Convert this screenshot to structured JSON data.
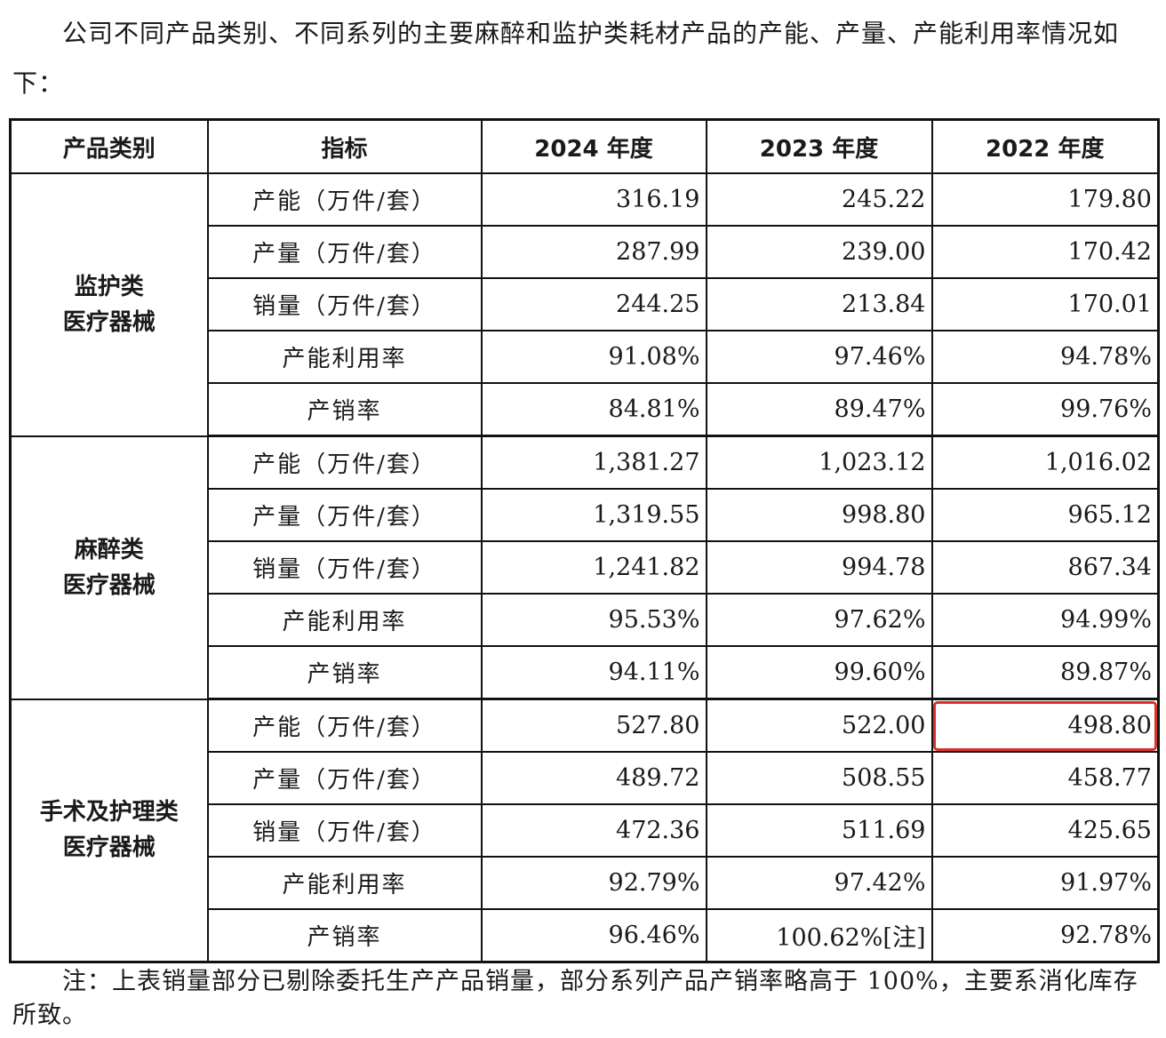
{
  "intro": "公司不同产品类别、不同系列的主要麻醉和监护类耗材产品的产能、产量、产能利用率情况如下：",
  "table": {
    "headers": [
      "产品类别",
      "指标",
      "2024 年度",
      "2023 年度",
      "2022 年度"
    ],
    "groups": [
      {
        "category_line1": "监护类",
        "category_line2": "医疗器械",
        "rows": [
          {
            "metric": "产能（万件/套）",
            "y2024": "316.19",
            "y2023": "245.22",
            "y2022": "179.80"
          },
          {
            "metric": "产量（万件/套）",
            "y2024": "287.99",
            "y2023": "239.00",
            "y2022": "170.42"
          },
          {
            "metric": "销量（万件/套）",
            "y2024": "244.25",
            "y2023": "213.84",
            "y2022": "170.01"
          },
          {
            "metric": "产能利用率",
            "y2024": "91.08%",
            "y2023": "97.46%",
            "y2022": "94.78%"
          },
          {
            "metric": "产销率",
            "y2024": "84.81%",
            "y2023": "89.47%",
            "y2022": "99.76%"
          }
        ]
      },
      {
        "category_line1": "麻醉类",
        "category_line2": "医疗器械",
        "rows": [
          {
            "metric": "产能（万件/套）",
            "y2024": "1,381.27",
            "y2023": "1,023.12",
            "y2022": "1,016.02"
          },
          {
            "metric": "产量（万件/套）",
            "y2024": "1,319.55",
            "y2023": "998.80",
            "y2022": "965.12"
          },
          {
            "metric": "销量（万件/套）",
            "y2024": "1,241.82",
            "y2023": "994.78",
            "y2022": "867.34"
          },
          {
            "metric": "产能利用率",
            "y2024": "95.53%",
            "y2023": "97.62%",
            "y2022": "94.99%"
          },
          {
            "metric": "产销率",
            "y2024": "94.11%",
            "y2023": "99.60%",
            "y2022": "89.87%"
          }
        ]
      },
      {
        "category_line1": "手术及护理类",
        "category_line2": "医疗器械",
        "rows": [
          {
            "metric": "产能（万件/套）",
            "y2024": "527.80",
            "y2023": "522.00",
            "y2022": "498.80"
          },
          {
            "metric": "产量（万件/套）",
            "y2024": "489.72",
            "y2023": "508.55",
            "y2022": "458.77"
          },
          {
            "metric": "销量（万件/套）",
            "y2024": "472.36",
            "y2023": "511.69",
            "y2022": "425.65"
          },
          {
            "metric": "产能利用率",
            "y2024": "92.79%",
            "y2023": "97.42%",
            "y2022": "91.97%"
          },
          {
            "metric": "产销率",
            "y2024": "96.46%",
            "y2023": "100.62%[注]",
            "y2022": "92.78%"
          }
        ]
      }
    ]
  },
  "note": "注：上表销量部分已剔除委托生产产品销量，部分系列产品产销率略高于 100%，主要系消化库存所致。",
  "colors": {
    "highlight_border": "#d9302a",
    "rule": "#111111"
  }
}
